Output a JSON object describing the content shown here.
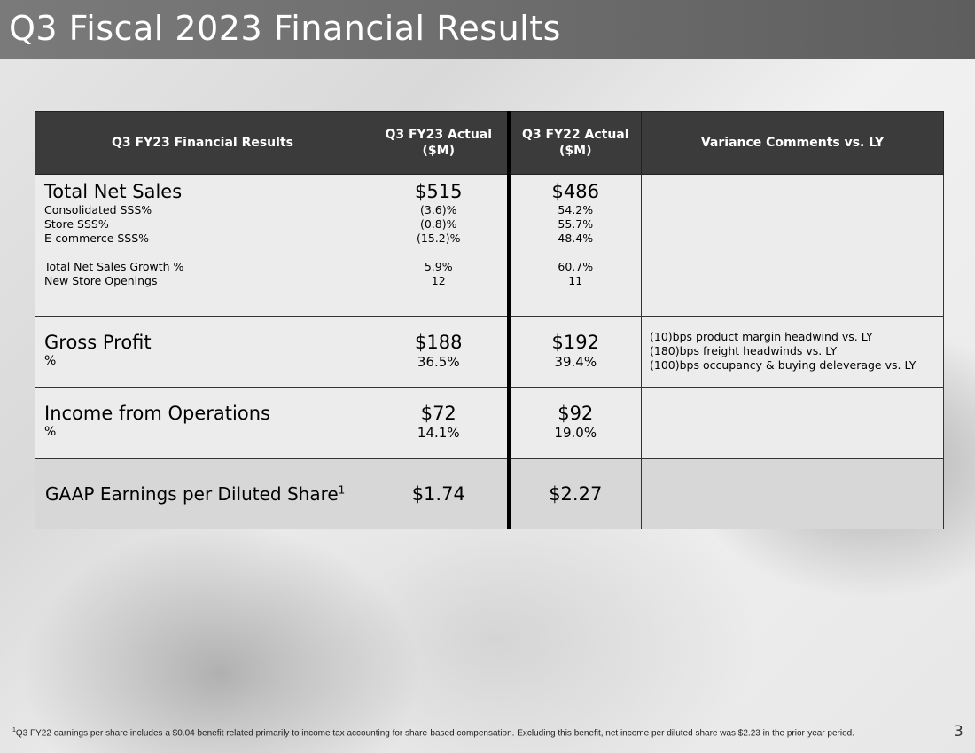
{
  "slide": {
    "title": "Q3 Fiscal 2023 Financial Results",
    "page_number": "3"
  },
  "table": {
    "headers": [
      "Q3 FY23 Financial Results",
      "Q3 FY23 Actual ($M)",
      "Q3 FY22 Actual ($M)",
      "Variance Comments vs. LY"
    ],
    "net_sales": {
      "label": "Total Net Sales",
      "fy23": "$515",
      "fy22": "$486",
      "sub_rows": [
        {
          "label": "Consolidated SSS%",
          "fy23": "(3.6)%",
          "fy22": "54.2%"
        },
        {
          "label": "Store SSS%",
          "fy23": "(0.8)%",
          "fy22": "55.7%"
        },
        {
          "label": "E-commerce SSS%",
          "fy23": "(15.2)%",
          "fy22": "48.4%"
        }
      ],
      "sub_rows_2": [
        {
          "label": "Total Net Sales Growth %",
          "fy23": "5.9%",
          "fy22": "60.7%"
        },
        {
          "label": "New Store Openings",
          "fy23": "12",
          "fy22": "11"
        }
      ]
    },
    "gross_profit": {
      "label": "Gross Profit",
      "sub_label": "%",
      "fy23": "$188",
      "fy23_pct": "36.5%",
      "fy22": "$192",
      "fy22_pct": "39.4%",
      "comments": [
        "(10)bps product margin headwind vs. LY",
        "(180)bps freight headwinds vs. LY",
        "(100)bps occupancy & buying deleverage vs. LY"
      ]
    },
    "income_ops": {
      "label": "Income from Operations",
      "sub_label": "%",
      "fy23": "$72",
      "fy23_pct": "14.1%",
      "fy22": "$92",
      "fy22_pct": "19.0%"
    },
    "eps": {
      "label": "GAAP Earnings per Diluted Share",
      "superscript": "1",
      "fy23": "$1.74",
      "fy22": "$2.27"
    }
  },
  "footnote": {
    "marker": "1",
    "text": "Q3 FY22 earnings per share includes a $0.04 benefit related primarily to income tax accounting for share-based compensation. Excluding this benefit, net income per diluted share was $2.23 in the prior-year period."
  }
}
